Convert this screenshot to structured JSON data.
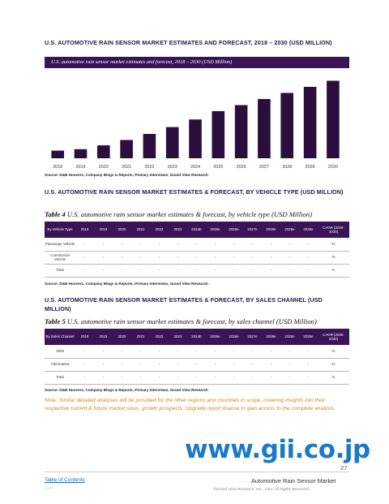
{
  "section1": {
    "heading": "U.S. AUTOMOTIVE RAIN SENSOR MARKET ESTIMATES AND FORECAST, 2018 – 2030 (USD MILLION)",
    "banner": "U.S. automotive rain sensor market estimates and forecast, 2018 – 2030 (USD Million)",
    "source": "Source: D&B Hoovers, Company Blogs & Reports, Primary Interviews, Grand View Research"
  },
  "chart_data": {
    "type": "bar",
    "categories": [
      "2018",
      "2019",
      "2020",
      "2021",
      "2022",
      "2023",
      "2024",
      "2025",
      "2026",
      "2027",
      "2028",
      "2029",
      "2030"
    ],
    "values": [
      10,
      12,
      17,
      24,
      32,
      41,
      51,
      62,
      70,
      78,
      86,
      94,
      102
    ],
    "ylim": [
      0,
      110
    ],
    "bar_color": "#2a0f3d",
    "title": "",
    "xlabel": "",
    "ylabel": ""
  },
  "section2": {
    "heading": "U.S. AUTOMOTIVE RAIN SENSOR MARKET ESTIMATES & FORECAST, BY VEHICLE TYPE (USD MILLION)",
    "caption_label": "Table 4",
    "caption_text": "U.S. automotive rain sensor market estimates & forecast, by vehicle type (USD Million)",
    "header_first": "By Vehicle Type",
    "columns": [
      "2018",
      "2019",
      "2020",
      "2021",
      "2022",
      "2023",
      "2024E",
      "2025e",
      "2026e",
      "2027e",
      "2028e",
      "2029e",
      "2030e"
    ],
    "cagr_label": "CAGR (2025-2030)",
    "rows": [
      {
        "label": "Passenger Vehicle",
        "cells": [
          "-",
          "-",
          "-",
          "-",
          "-",
          "-",
          "-",
          "-",
          "-",
          "-",
          "-",
          "-",
          "-"
        ],
        "cagr": "%"
      },
      {
        "label": "Commercial Vehicle",
        "cells": [
          "-",
          "-",
          "-",
          "-",
          "-",
          "-",
          "-",
          "-",
          "-",
          "-",
          "-",
          "-",
          "-"
        ],
        "cagr": "%"
      },
      {
        "label": "Total",
        "cells": [
          "-",
          "-",
          "-",
          "-",
          "-",
          "-",
          "-",
          "-",
          "-",
          "-",
          "-",
          "-",
          "-"
        ],
        "cagr": "%"
      }
    ],
    "source": "Source: D&B Hoovers, Company Blogs & Reports, Primary Interviews, Grand View Research"
  },
  "section3": {
    "heading": "U.S. AUTOMOTIVE RAIN SENSOR MARKET ESTIMATES & FORECAST, BY SALES CHANNEL (USD MILLION)",
    "caption_label": "Table 5",
    "caption_text": "U.S. automotive rain sensor market estimates & forecast, by sales channel (USD Million)",
    "header_first": "By Sales Channel",
    "columns": [
      "2018",
      "2019",
      "2020",
      "2021",
      "2022",
      "2023",
      "2024E",
      "2025e",
      "2026e",
      "2027e",
      "2028e",
      "2029e",
      "2030e"
    ],
    "cagr_label": "CAGR (2025-2030)",
    "rows": [
      {
        "label": "OEM",
        "cells": [
          "-",
          "-",
          "-",
          "-",
          "-",
          "-",
          "-",
          "-",
          "-",
          "-",
          "-",
          "-",
          "-"
        ],
        "cagr": "%"
      },
      {
        "label": "Aftermarket",
        "cells": [
          "-",
          "-",
          "-",
          "-",
          "-",
          "-",
          "-",
          "-",
          "-",
          "-",
          "-",
          "-",
          "-"
        ],
        "cagr": "%"
      },
      {
        "label": "Total",
        "cells": [
          "-",
          "-",
          "-",
          "-",
          "-",
          "-",
          "-",
          "-",
          "-",
          "-",
          "-",
          "-",
          "-"
        ],
        "cagr": "%"
      }
    ],
    "source": "Source: D&B Hoovers, Company Blogs & Reports, Primary Interviews, Grand View Research"
  },
  "note": "Note: Similar detailed analyses will be provided for the other regions and countries in scope, covering insights into their respective current & future market sizes, growth prospects. Upgrade report license to gain access to the complete analysis.",
  "watermark": "www.gii.co.jp",
  "footer": {
    "toc_link": "Table of Contents",
    "page_number": "27",
    "report_title": "Automotive Rain Sensor Market",
    "copyright": "©Grand View Research, Inc., USA. All Rights Reserved",
    "left_code": "GVR"
  }
}
